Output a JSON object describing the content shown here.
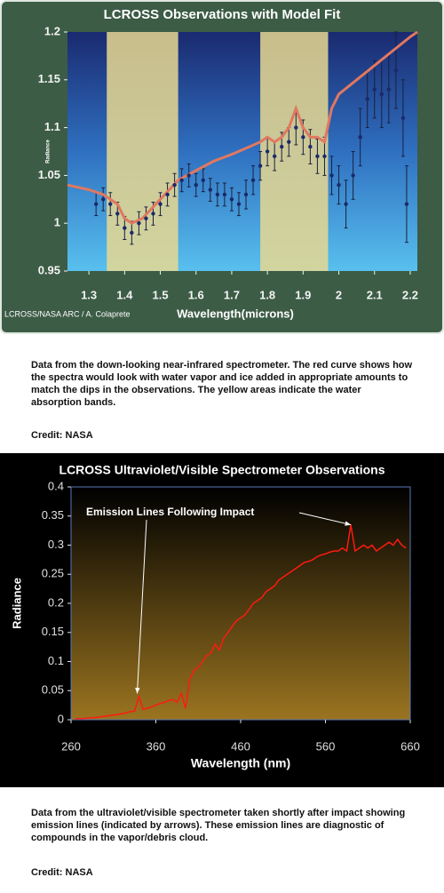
{
  "chart_data": [
    {
      "type": "scatter",
      "title": "LCROSS Observations with Model Fit",
      "y_label": "Radiance",
      "x_label": "Wavelength(microns)",
      "credit": "LCROSS/NASA ARC / A. Colaprete",
      "xlim": [
        1.24,
        2.22
      ],
      "xticks": [
        1.3,
        1.4,
        1.5,
        1.6,
        1.7,
        1.8,
        1.9,
        2,
        2.1,
        2.2
      ],
      "ylim": [
        0.95,
        1.2
      ],
      "yticks": [
        0.95,
        1,
        1.05,
        1.1,
        1.15,
        1.2
      ],
      "bands": [
        [
          1.35,
          1.55
        ],
        [
          1.78,
          1.97
        ]
      ],
      "band_color": "#e8d890",
      "color": "#1a2a6a",
      "model_color": "#e07860",
      "x": [
        1.32,
        1.34,
        1.36,
        1.38,
        1.4,
        1.42,
        1.44,
        1.46,
        1.48,
        1.5,
        1.52,
        1.54,
        1.56,
        1.58,
        1.6,
        1.62,
        1.64,
        1.66,
        1.68,
        1.7,
        1.72,
        1.74,
        1.76,
        1.78,
        1.8,
        1.82,
        1.84,
        1.86,
        1.88,
        1.9,
        1.92,
        1.94,
        1.96,
        1.98,
        2.0,
        2.02,
        2.04,
        2.06,
        2.08,
        2.1,
        2.12,
        2.14,
        2.16,
        2.18,
        2.19
      ],
      "values": [
        1.02,
        1.025,
        1.02,
        1.01,
        0.995,
        0.99,
        1.0,
        1.005,
        1.01,
        1.02,
        1.03,
        1.04,
        1.045,
        1.05,
        1.04,
        1.045,
        1.035,
        1.03,
        1.03,
        1.025,
        1.02,
        1.03,
        1.045,
        1.06,
        1.075,
        1.07,
        1.08,
        1.085,
        1.1,
        1.09,
        1.08,
        1.07,
        1.07,
        1.05,
        1.04,
        1.02,
        1.05,
        1.09,
        1.13,
        1.14,
        1.135,
        1.14,
        1.16,
        1.11,
        1.02
      ],
      "errors": [
        0.012,
        0.012,
        0.012,
        0.012,
        0.012,
        0.012,
        0.012,
        0.012,
        0.012,
        0.012,
        0.012,
        0.012,
        0.012,
        0.012,
        0.012,
        0.012,
        0.012,
        0.012,
        0.012,
        0.012,
        0.012,
        0.015,
        0.015,
        0.015,
        0.015,
        0.015,
        0.015,
        0.015,
        0.018,
        0.018,
        0.018,
        0.018,
        0.02,
        0.02,
        0.02,
        0.025,
        0.025,
        0.03,
        0.03,
        0.03,
        0.035,
        0.035,
        0.04,
        0.04,
        0.04
      ],
      "model_x": [
        1.24,
        1.3,
        1.34,
        1.38,
        1.4,
        1.42,
        1.45,
        1.5,
        1.55,
        1.6,
        1.65,
        1.7,
        1.75,
        1.78,
        1.8,
        1.82,
        1.84,
        1.86,
        1.88,
        1.9,
        1.92,
        1.94,
        1.96,
        1.98,
        2.0,
        2.05,
        2.1,
        2.15,
        2.2,
        2.22
      ],
      "model_values": [
        1.04,
        1.035,
        1.03,
        1.02,
        1.005,
        1.0,
        1.005,
        1.025,
        1.045,
        1.055,
        1.065,
        1.072,
        1.08,
        1.085,
        1.09,
        1.085,
        1.09,
        1.1,
        1.12,
        1.1,
        1.09,
        1.09,
        1.085,
        1.12,
        1.135,
        1.15,
        1.165,
        1.18,
        1.195,
        1.2
      ]
    },
    {
      "type": "line",
      "title": "LCROSS Ultraviolet/Visible Spectrometer Observations",
      "y_label": "Radiance",
      "x_label": "Wavelength (nm)",
      "annotation": "Emission Lines Following Impact",
      "arrow_targets": [
        [
          338,
          0.045
        ],
        [
          590,
          0.335
        ]
      ],
      "xlim": [
        260,
        660
      ],
      "xticks": [
        260,
        360,
        460,
        560,
        660
      ],
      "ylim": [
        0,
        0.4
      ],
      "yticks": [
        0,
        0.05,
        0.1,
        0.15,
        0.2,
        0.25,
        0.3,
        0.35,
        0.4
      ],
      "color": "#ff1a10",
      "x": [
        265,
        270,
        275,
        280,
        285,
        290,
        295,
        300,
        305,
        310,
        315,
        320,
        325,
        330,
        335,
        340,
        345,
        350,
        355,
        360,
        365,
        370,
        375,
        380,
        385,
        390,
        395,
        400,
        405,
        410,
        415,
        420,
        425,
        430,
        435,
        440,
        445,
        450,
        455,
        460,
        465,
        470,
        475,
        480,
        485,
        490,
        495,
        500,
        505,
        510,
        515,
        520,
        525,
        530,
        535,
        540,
        545,
        550,
        555,
        560,
        565,
        570,
        575,
        580,
        585,
        590,
        595,
        600,
        605,
        610,
        615,
        620,
        625,
        630,
        635,
        640,
        645,
        650,
        655
      ],
      "values": [
        0.001,
        0.002,
        0.002,
        0.003,
        0.003,
        0.004,
        0.005,
        0.006,
        0.007,
        0.008,
        0.009,
        0.01,
        0.012,
        0.014,
        0.015,
        0.04,
        0.018,
        0.02,
        0.022,
        0.025,
        0.028,
        0.03,
        0.033,
        0.035,
        0.03,
        0.045,
        0.02,
        0.07,
        0.085,
        0.09,
        0.1,
        0.11,
        0.115,
        0.13,
        0.12,
        0.14,
        0.15,
        0.16,
        0.17,
        0.175,
        0.18,
        0.19,
        0.2,
        0.205,
        0.21,
        0.22,
        0.225,
        0.23,
        0.24,
        0.245,
        0.25,
        0.255,
        0.26,
        0.265,
        0.27,
        0.272,
        0.275,
        0.28,
        0.283,
        0.285,
        0.288,
        0.29,
        0.29,
        0.295,
        0.29,
        0.335,
        0.29,
        0.295,
        0.3,
        0.295,
        0.3,
        0.29,
        0.295,
        0.3,
        0.305,
        0.3,
        0.31,
        0.3,
        0.295
      ]
    }
  ],
  "captions": [
    {
      "text": "Data from the down-looking near-infrared spectrometer. The red curve shows how the spectra would look with water vapor and ice added in appropriate amounts to match the dips in the observations. The yellow areas indicate the water absorption bands.",
      "credit": "Credit: NASA"
    },
    {
      "text": "Data from the ultraviolet/visible spectrometer taken shortly after impact showing emission lines (indicated by arrows). These emission lines are diagnostic of compounds in the vapor/debris cloud.",
      "credit": "Credit: NASA"
    }
  ]
}
